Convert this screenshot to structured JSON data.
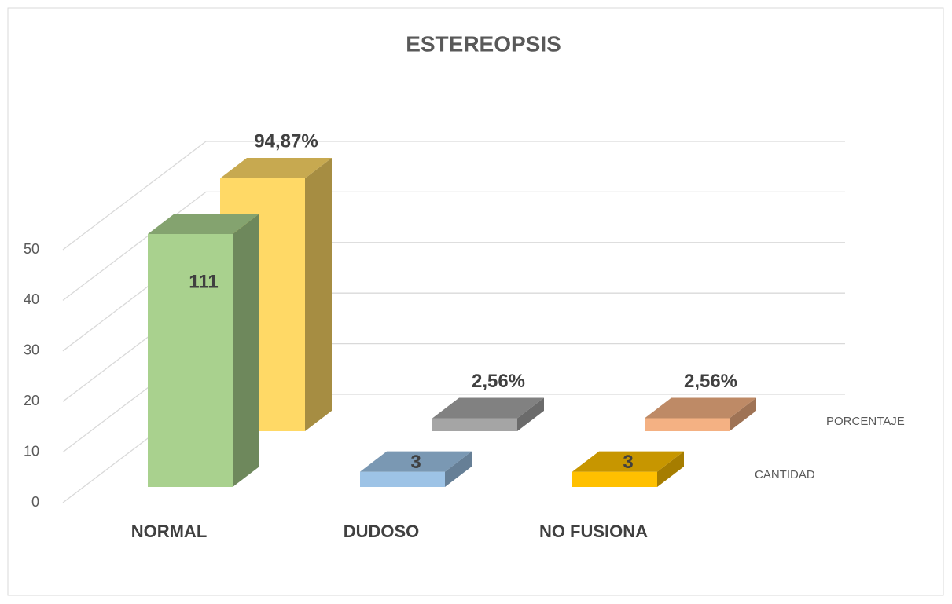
{
  "chart_data": {
    "type": "bar3d",
    "title": "ESTEREOPSIS",
    "categories": [
      "NORMAL",
      "DUDOSO",
      "NO FUSIONA"
    ],
    "series": [
      {
        "name": "CANTIDAD",
        "colors": [
          "#a9d18e",
          "#9dc3e6",
          "#ffc000"
        ],
        "values": [
          111,
          3,
          3
        ]
      },
      {
        "name": "PORCENTAJE",
        "colors": [
          "#ffd966",
          "#a5a5a5",
          "#f4b183"
        ],
        "values": [
          94.87,
          2.56,
          2.56
        ],
        "value_labels": [
          "94,87%",
          "2,56%",
          "2,56%"
        ]
      }
    ],
    "ylim": [
      0,
      50
    ],
    "yticks": [
      0,
      10,
      20,
      30,
      40,
      50
    ],
    "grid": true
  }
}
